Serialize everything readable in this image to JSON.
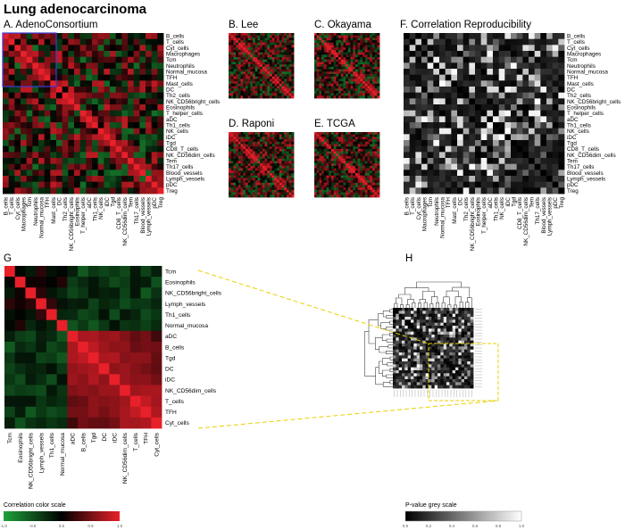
{
  "page": {
    "title": "Lung adenocarcinoma"
  },
  "panels": {
    "A": {
      "label": "A. AdenoConsortium"
    },
    "B": {
      "label": "B. Lee"
    },
    "C": {
      "label": "C. Okayama"
    },
    "D": {
      "label": "D. Raponi"
    },
    "E": {
      "label": "E. TCGA"
    },
    "F": {
      "label": "F. Correlation Reproducibility"
    },
    "G": {
      "label": "G"
    },
    "H": {
      "label": "H"
    }
  },
  "chart_data": [
    {
      "type": "heatmap",
      "panel": "A",
      "rows": [
        "B_cells",
        "T_cells",
        "Cyt_cells",
        "Macrophages",
        "Tcm",
        "Neutrophils",
        "Normal_mucosa",
        "TFH",
        "Mast_cells",
        "DC",
        "Th2_cells",
        "NK_CD56bright_cells",
        "Eosinophils",
        "T_helper_cells",
        "aDC",
        "Th1_cells",
        "NK_cells",
        "iDC",
        "Tgd",
        "CD8_T_cells",
        "NK_CD56dim_cells",
        "Tem",
        "Th17_cells",
        "Blood_vessels",
        "Lymph_vessels",
        "pDC",
        "Treg"
      ],
      "columns": [
        "B_cells",
        "T_cells",
        "Cyt_cells",
        "Macrophages",
        "Tcm",
        "Neutrophils",
        "Normal_mucosa",
        "TFH",
        "Mast_cells",
        "DC",
        "Th2_cells",
        "NK_CD56bright_cells",
        "Eosinophils",
        "T_helper_cells",
        "aDC",
        "Th1_cells",
        "NK_cells",
        "iDC",
        "Tgd",
        "CD8_T_cells",
        "NK_CD56dim_cells",
        "Tem",
        "Th17_cells",
        "Blood_vessels",
        "Lymph_vessels",
        "pDC",
        "Treg"
      ]
    },
    {
      "type": "heatmap",
      "panel": "B"
    },
    {
      "type": "heatmap",
      "panel": "C"
    },
    {
      "type": "heatmap",
      "panel": "D"
    },
    {
      "type": "heatmap",
      "panel": "E"
    },
    {
      "type": "heatmap",
      "panel": "F",
      "rows": [
        "B_cells",
        "T_cells",
        "Cyt_cells",
        "Macrophages",
        "Tcm",
        "Neutrophils",
        "Normal_mucosa",
        "TFH",
        "Mast_cells",
        "DC",
        "Th2_cells",
        "NK_CD56bright_cells",
        "Eosinophils",
        "T_helper_cells",
        "aDC",
        "Th1_cells",
        "NK_cells",
        "iDC",
        "Tgd",
        "CD8_T_cells",
        "NK_CD56dim_cells",
        "Tem",
        "Th17_cells",
        "Blood_vessels",
        "Lymph_vessels",
        "pDC",
        "Treg"
      ],
      "columns": [
        "B_cells",
        "T_cells",
        "Cyt_cells",
        "Macrophages",
        "Tcm",
        "Neutrophils",
        "Normal_mucosa",
        "TFH",
        "Mast_cells",
        "DC",
        "Th2_cells",
        "NK_CD56bright_cells",
        "Eosinophils",
        "T_helper_cells",
        "aDC",
        "Th1_cells",
        "NK_cells",
        "iDC",
        "Tgd",
        "CD8_T_cells",
        "NK_CD56dim_cells",
        "Tem",
        "Th17_cells",
        "Blood_vessels",
        "Lymph_vessels",
        "pDC",
        "Treg"
      ]
    },
    {
      "type": "heatmap",
      "panel": "G",
      "rows": [
        "Tcm",
        "Eosinophils",
        "NK_CD56bright_cells",
        "Lymph_vessels",
        "Th1_cells",
        "Normal_mucosa",
        "aDC",
        "B_cells",
        "Tgd",
        "DC",
        "iDC",
        "NK_CD56dim_cells",
        "T_cells",
        "TFH",
        "Cyt_cells"
      ],
      "columns": [
        "Tcm",
        "Eosinophils",
        "NK_CD56bright_cells",
        "Lymph_vessels",
        "Th1_cells",
        "Normal_mucosa",
        "aDC",
        "B_cells",
        "Tgd",
        "DC",
        "iDC",
        "NK_CD56dim_cells",
        "T_cells",
        "TFH",
        "Cyt_cells"
      ]
    },
    {
      "type": "heatmap",
      "panel": "H"
    }
  ],
  "color_scale": {
    "title": "Correlation color scale",
    "ticks": [
      "-1.0",
      "-0.5",
      "0.0",
      "0.5",
      "1.0"
    ],
    "colors": {
      "negative": "#1fa33a",
      "zero": "#000000",
      "positive": "#e8202a"
    }
  },
  "grey_scale": {
    "title": "P-value grey scale",
    "ticks": [
      "0.0",
      "0.2",
      "0.4",
      "0.6",
      "0.8",
      "1.0"
    ],
    "colors": {
      "low": "#000000",
      "high": "#ffffff"
    }
  },
  "colors": {
    "highlight_box": "#3b3bd6",
    "connector": "#e8d000"
  }
}
